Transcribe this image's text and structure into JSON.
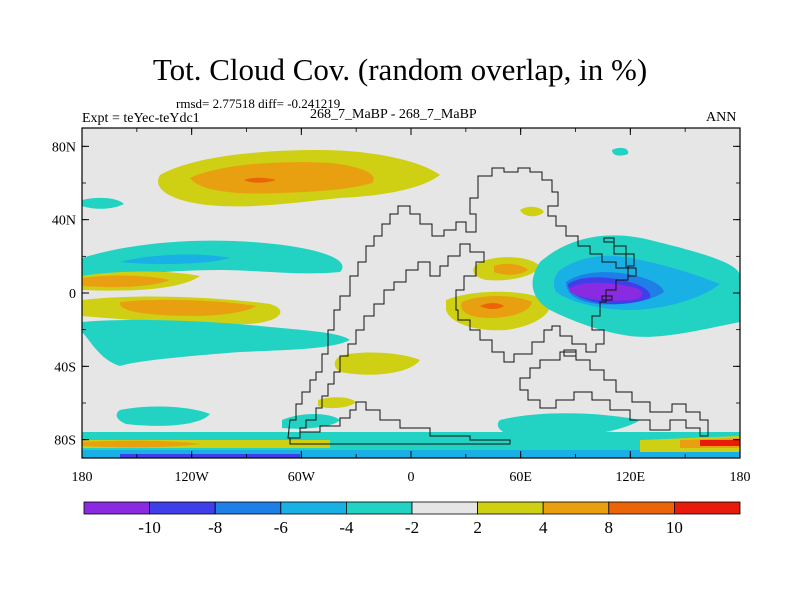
{
  "title": "Tot. Cloud Cov. (random overlap, in %)",
  "stats": "rmsd= 2.77518 diff= -0.241219",
  "expt": "Expt = teYec-teYdc1",
  "period": "268_7_MaBP - 268_7_MaBP",
  "season": "ANN",
  "axes": {
    "lon_ticks": [
      "180",
      "120W",
      "60W",
      "0",
      "60E",
      "120E",
      "180"
    ],
    "lat_ticks": [
      "80N",
      "40N",
      "0",
      "40S",
      "80S"
    ]
  },
  "colorbar": {
    "labels": [
      "-10",
      "-8",
      "-6",
      "-4",
      "-2",
      "2",
      "4",
      "8",
      "10"
    ],
    "colors": [
      "#8a2be2",
      "#3f3fea",
      "#1e7fe6",
      "#19b0e6",
      "#22d3c3",
      "#e6e6e6",
      "#cfcf14",
      "#e8a010",
      "#ec6408",
      "#e81a0c"
    ]
  },
  "colors": {
    "background": "#e6e6e6",
    "coast": "#111111"
  }
}
